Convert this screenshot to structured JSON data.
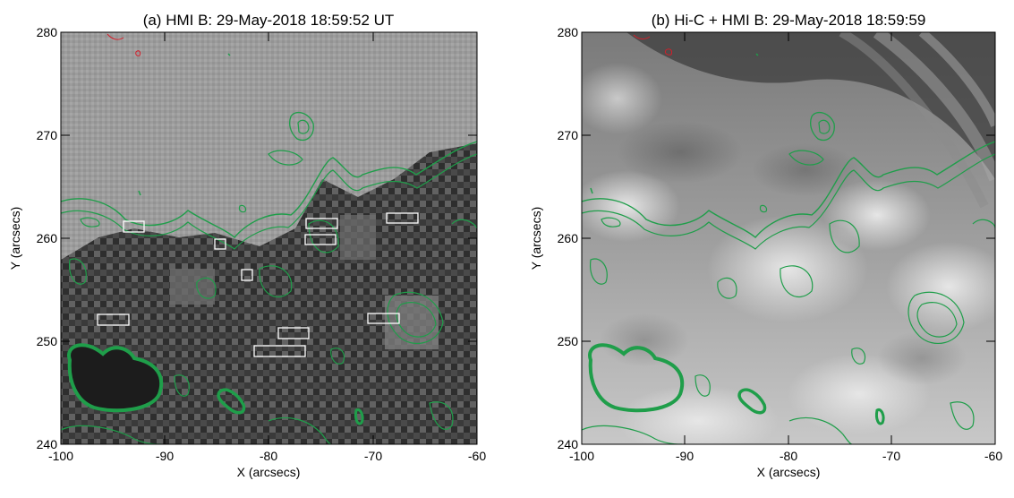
{
  "panels": [
    {
      "title": "(a) HMI B: 29-May-2018 18:59:52 UT",
      "xlabel": "X (arcsecs)",
      "ylabel": "Y (arcsecs)",
      "xticks": [
        "-100",
        "-90",
        "-80",
        "-70",
        "-60"
      ],
      "yticks": [
        "240",
        "250",
        "260",
        "270",
        "280"
      ],
      "image": "HMI magnetogram, grayscale pixelated"
    },
    {
      "title": "(b) Hi-C + HMI B: 29-May-2018 18:59:59",
      "xlabel": "X (arcsecs)",
      "ylabel": "Y (arcsecs)",
      "xticks": [
        "-100",
        "-90",
        "-80",
        "-70",
        "-60"
      ],
      "yticks": [
        "240",
        "250",
        "260",
        "270",
        "280"
      ],
      "image": "Hi-C EUV image with HMI contours"
    }
  ],
  "colors": {
    "contour": "#1f9e4a",
    "negative_contour": "#d21f2a",
    "boxes": "#ffffff"
  }
}
